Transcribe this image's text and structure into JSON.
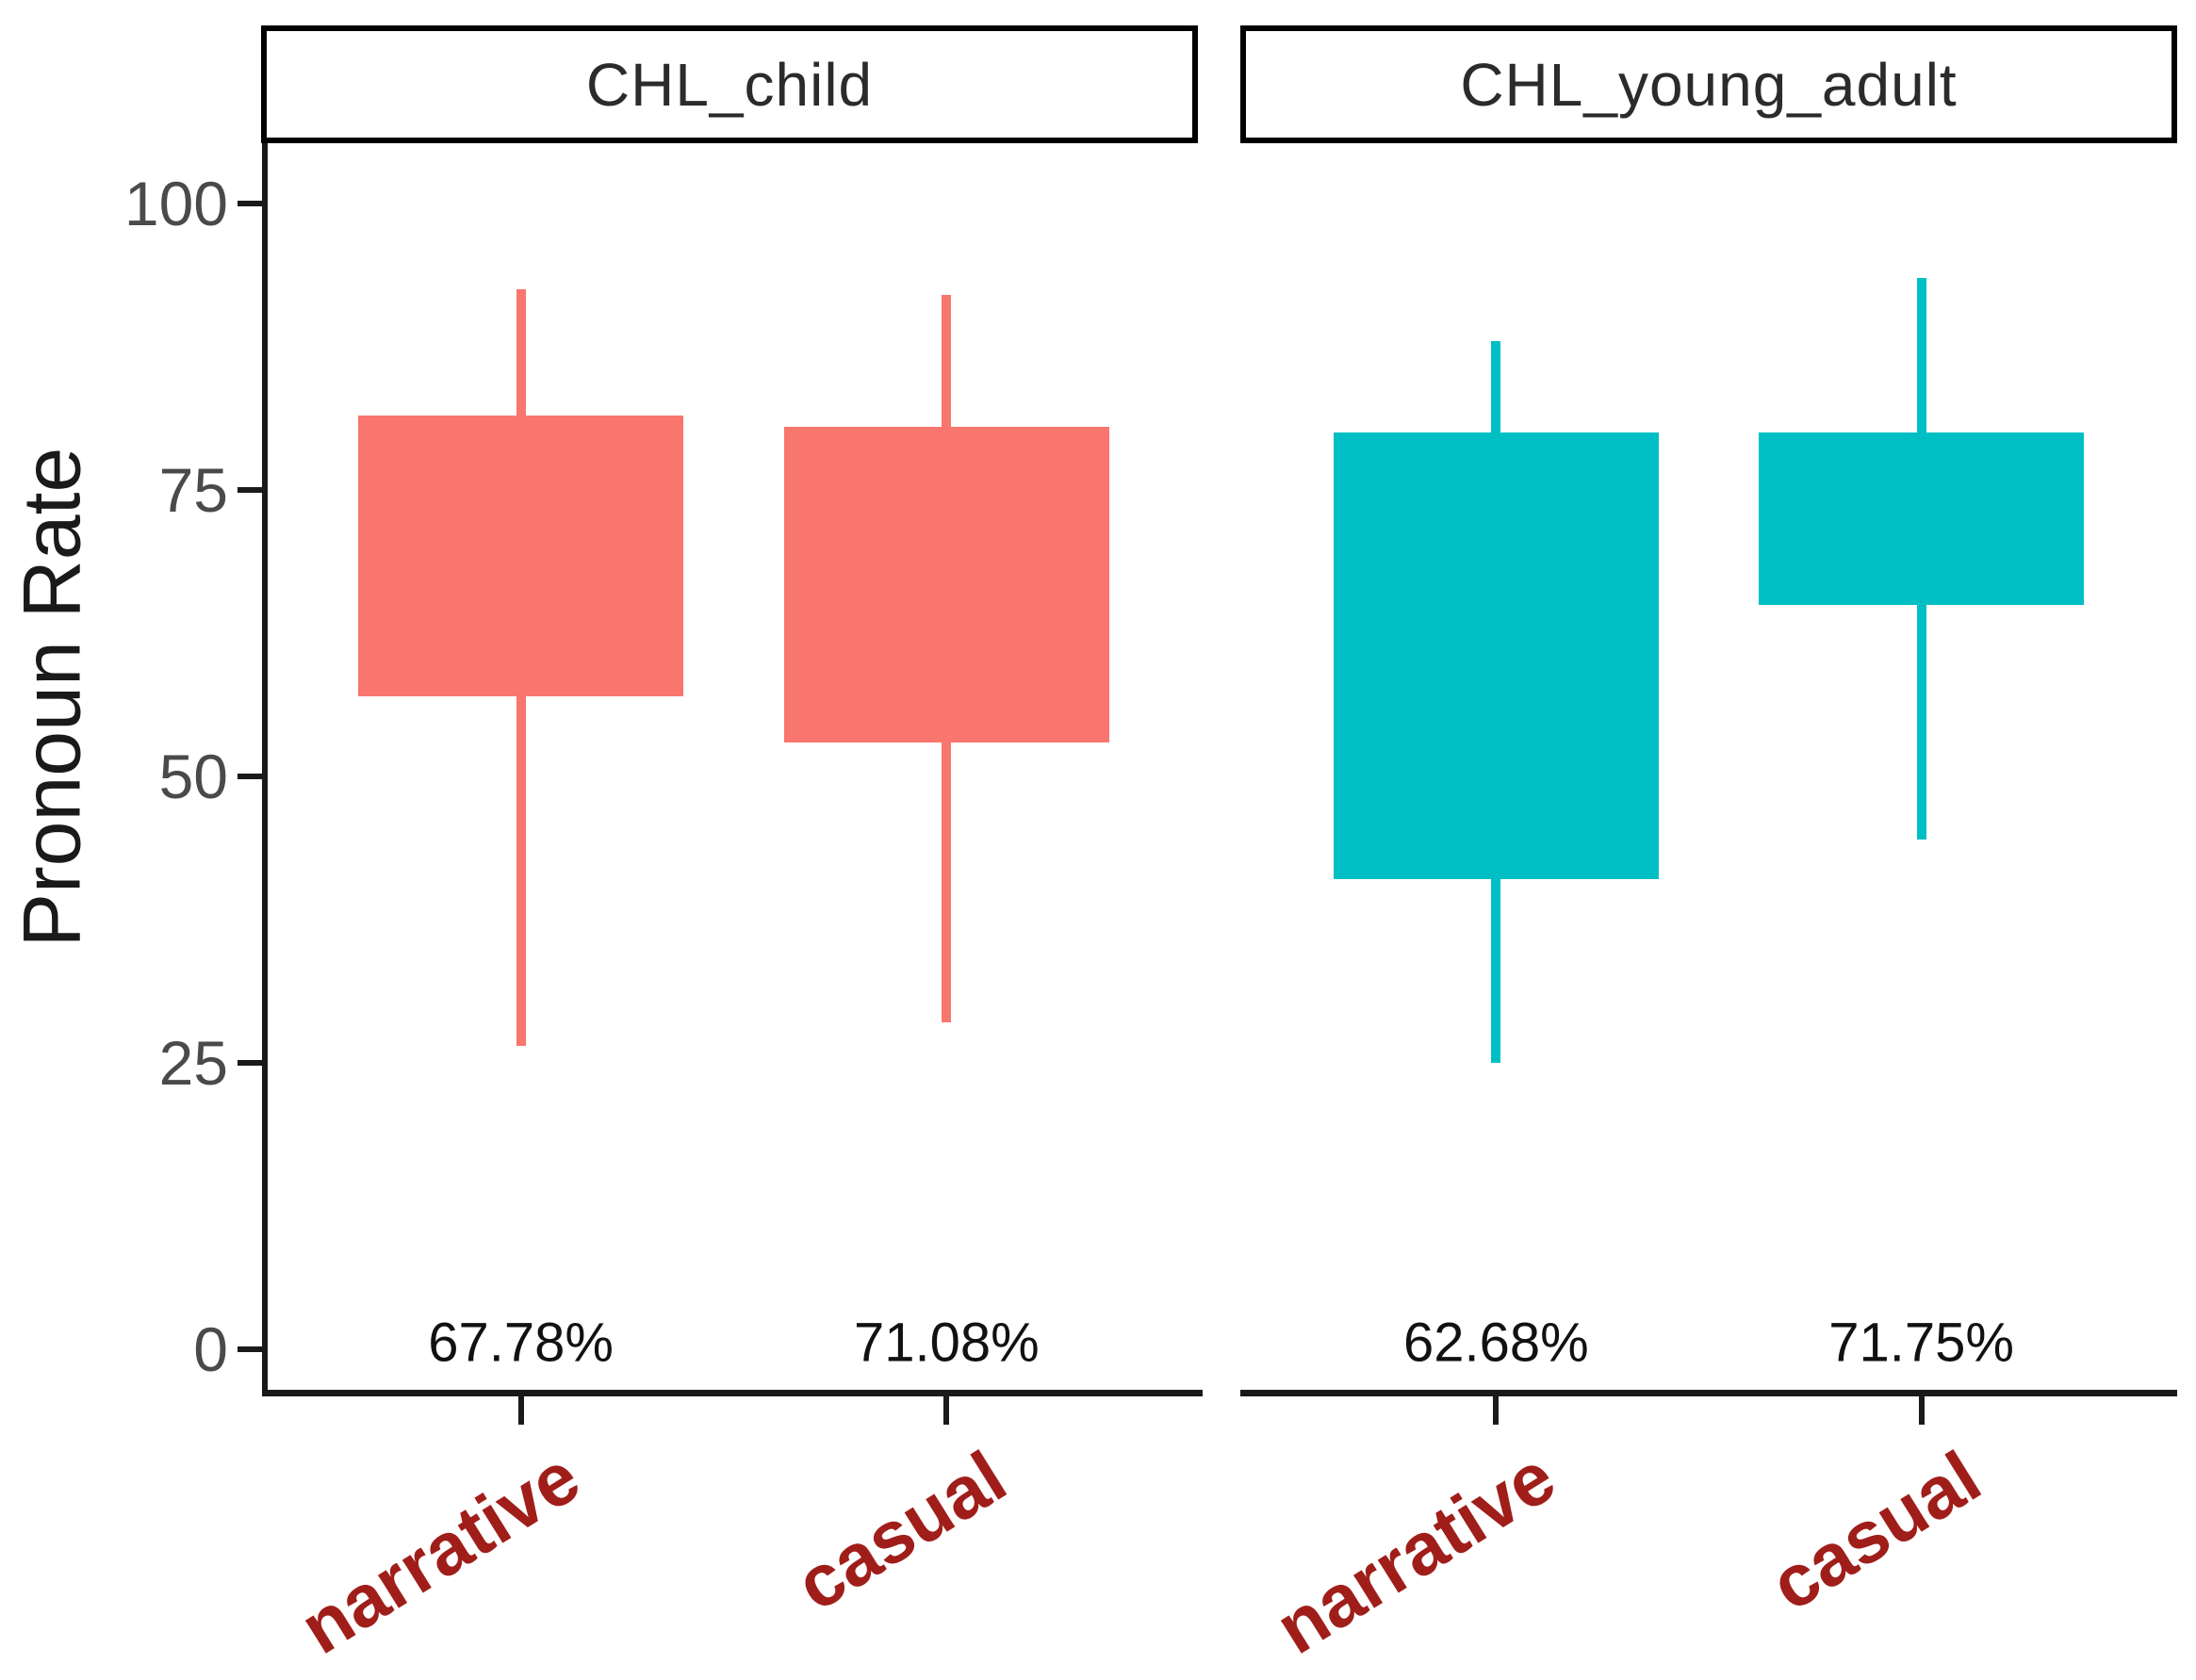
{
  "chart_data": {
    "type": "boxplot",
    "title": "",
    "ylabel": "Pronoun Rate",
    "xlabel": "",
    "ylim": [
      0,
      100
    ],
    "yticks": [
      100,
      75,
      50,
      25,
      0
    ],
    "x_categories": [
      "narrative",
      "casual"
    ],
    "grid": false,
    "legend": null,
    "facets": [
      {
        "label": "CHL_child",
        "color": "#F8766D",
        "boxes": [
          {
            "category": "narrative",
            "whisker_high": 92.5,
            "box_high": 81.5,
            "box_low": 57,
            "whisker_low": 26.5,
            "mean_label": "67.78%"
          },
          {
            "category": "casual",
            "whisker_high": 92,
            "box_high": 80.5,
            "box_low": 53,
            "whisker_low": 28.5,
            "mean_label": "71.08%"
          }
        ]
      },
      {
        "label": "CHL_young_adult",
        "color": "#00BFC4",
        "boxes": [
          {
            "category": "narrative",
            "whisker_high": 88,
            "box_high": 80,
            "box_low": 41,
            "whisker_low": 25,
            "mean_label": "62.68%"
          },
          {
            "category": "casual",
            "whisker_high": 93.5,
            "box_high": 80,
            "box_low": 65,
            "whisker_low": 44.5,
            "mean_label": "71.75%"
          }
        ]
      }
    ],
    "style": {
      "x_tick_label_color": "#A01E1A",
      "axis_text_color": "#4a4a4a",
      "strip_text_color": "#2b2b2b",
      "annotation_color": "#111111",
      "axis_line_color": "#1a1a1a"
    }
  }
}
